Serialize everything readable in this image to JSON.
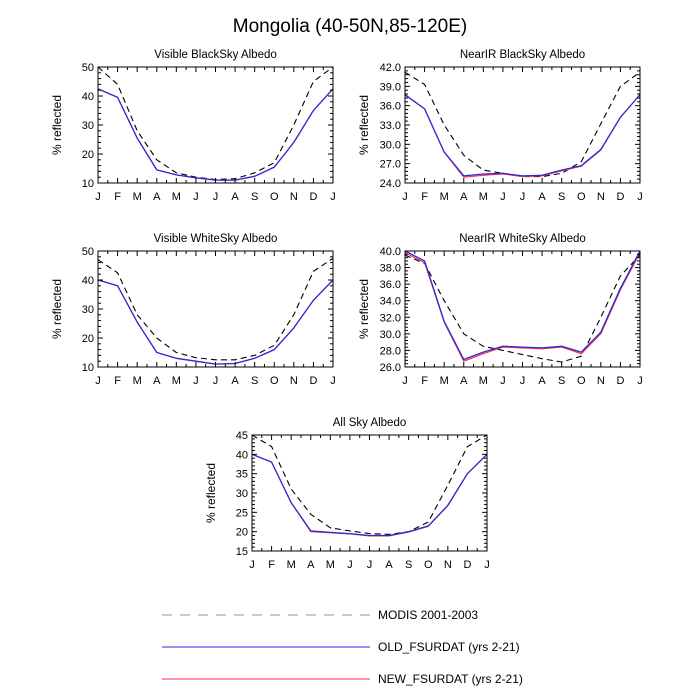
{
  "title": "Mongolia (40-50N,85-120E)",
  "months": [
    "J",
    "F",
    "M",
    "A",
    "M",
    "J",
    "J",
    "A",
    "S",
    "O",
    "N",
    "D",
    "J"
  ],
  "legend": [
    {
      "label": "MODIS 2001-2003",
      "color": "#000000",
      "dash": true
    },
    {
      "label": "OLD_FSURDAT (yrs 2-21)",
      "color": "#2b2bd6",
      "dash": false
    },
    {
      "label": "NEW_FSURDAT (yrs 2-21)",
      "color": "#ff2a4a",
      "dash": false
    }
  ],
  "chart_data": [
    {
      "type": "line",
      "title": "Visible BlackSky Albedo",
      "ylabel": "% reflected",
      "ylim": [
        10,
        50
      ],
      "yticks": [
        10,
        20,
        30,
        40,
        50
      ],
      "yticklabels": [
        "10",
        "20",
        "30",
        "40",
        "50"
      ],
      "series": [
        {
          "name": "MODIS 2001-2003",
          "values": [
            50,
            44,
            28,
            18,
            13.5,
            12,
            11.2,
            11.5,
            13.5,
            17,
            30,
            45,
            50
          ]
        },
        {
          "name": "OLD_FSURDAT (yrs 2-21)",
          "values": [
            42.5,
            39.5,
            25.5,
            14.5,
            12.8,
            11.8,
            11.0,
            11.0,
            12.3,
            15.5,
            24,
            35,
            42.5
          ]
        },
        {
          "name": "NEW_FSURDAT (yrs 2-21)",
          "values": [
            42.5,
            39.5,
            25.5,
            14.5,
            12.8,
            11.8,
            11.0,
            11.0,
            12.3,
            15.5,
            24,
            35,
            42.5
          ]
        }
      ]
    },
    {
      "type": "line",
      "title": "NearIR BlackSky Albedo",
      "ylabel": "% reflected",
      "ylim": [
        24,
        42
      ],
      "yticks": [
        24,
        27,
        30,
        33,
        36,
        39,
        42
      ],
      "yticklabels": [
        "24.0",
        "27.0",
        "30.0",
        "33.0",
        "36.0",
        "39.0",
        "42.0"
      ],
      "series": [
        {
          "name": "MODIS 2001-2003",
          "values": [
            41.2,
            39.3,
            33,
            28.3,
            26,
            25.5,
            25,
            25,
            25.5,
            27.3,
            33.2,
            39,
            41.2
          ]
        },
        {
          "name": "OLD_FSURDAT (yrs 2-21)",
          "values": [
            37.7,
            35.5,
            28.8,
            25.1,
            25.4,
            25.5,
            25.1,
            25.2,
            26,
            26.7,
            29.2,
            34.2,
            37.7
          ]
        },
        {
          "name": "NEW_FSURDAT (yrs 2-21)",
          "values": [
            37.7,
            35.5,
            28.8,
            24.9,
            25.2,
            25.4,
            25.0,
            25.1,
            25.9,
            26.6,
            29.1,
            34.2,
            37.7
          ]
        }
      ]
    },
    {
      "type": "line",
      "title": "Visible WhiteSky Albedo",
      "ylabel": "% reflected",
      "ylim": [
        10,
        50
      ],
      "yticks": [
        10,
        20,
        30,
        40,
        50
      ],
      "yticklabels": [
        "10",
        "20",
        "30",
        "40",
        "50"
      ],
      "series": [
        {
          "name": "MODIS 2001-2003",
          "values": [
            47,
            42.5,
            28,
            20,
            15,
            13.2,
            12.5,
            12.5,
            14,
            17.5,
            28,
            43,
            47.5
          ]
        },
        {
          "name": "OLD_FSURDAT (yrs 2-21)",
          "values": [
            40,
            38,
            25.5,
            15,
            13,
            12,
            11,
            11.2,
            13,
            16,
            23.5,
            33,
            40
          ]
        },
        {
          "name": "NEW_FSURDAT (yrs 2-21)",
          "values": [
            40,
            38,
            25.5,
            15,
            13,
            12,
            11,
            11.2,
            13,
            16,
            23.5,
            33,
            40
          ]
        }
      ]
    },
    {
      "type": "line",
      "title": "NearIR WhiteSky Albedo",
      "ylabel": "% reflected",
      "ylim": [
        26,
        40
      ],
      "yticks": [
        26,
        28,
        30,
        32,
        34,
        36,
        38,
        40
      ],
      "yticklabels": [
        "26.0",
        "28.0",
        "30.0",
        "32.0",
        "34.0",
        "36.0",
        "38.0",
        "40.0"
      ],
      "series": [
        {
          "name": "MODIS 2001-2003",
          "values": [
            39.5,
            38.5,
            34,
            30,
            28.5,
            28,
            27.5,
            27,
            26.6,
            27.3,
            32,
            37,
            39.5
          ]
        },
        {
          "name": "OLD_FSURDAT (yrs 2-21)",
          "values": [
            40,
            38.8,
            31.5,
            26.9,
            27.8,
            28.5,
            28.4,
            28.3,
            28.5,
            27.8,
            30.2,
            35.5,
            40
          ]
        },
        {
          "name": "NEW_FSURDAT (yrs 2-21)",
          "values": [
            39.8,
            38.6,
            31.4,
            26.7,
            27.6,
            28.4,
            28.3,
            28.2,
            28.4,
            27.6,
            30.0,
            35.3,
            39.8
          ]
        }
      ]
    },
    {
      "type": "line",
      "title": "All Sky Albedo",
      "ylabel": "% reflected",
      "ylim": [
        15,
        45
      ],
      "yticks": [
        15,
        20,
        25,
        30,
        35,
        40,
        45
      ],
      "yticklabels": [
        "15",
        "20",
        "25",
        "30",
        "35",
        "40",
        "45"
      ],
      "series": [
        {
          "name": "MODIS 2001-2003",
          "values": [
            45,
            42,
            31,
            24.5,
            21,
            20.2,
            19.5,
            19.3,
            20,
            22.5,
            32,
            42,
            45
          ]
        },
        {
          "name": "OLD_FSURDAT (yrs 2-21)",
          "values": [
            40,
            38,
            27.5,
            20.2,
            19.8,
            19.5,
            19,
            19,
            20,
            21.5,
            26.8,
            35,
            40
          ]
        },
        {
          "name": "NEW_FSURDAT (yrs 2-21)",
          "values": [
            40,
            38,
            27.5,
            20.0,
            19.7,
            19.4,
            18.9,
            18.9,
            19.9,
            21.4,
            26.7,
            35,
            40
          ]
        }
      ]
    }
  ]
}
